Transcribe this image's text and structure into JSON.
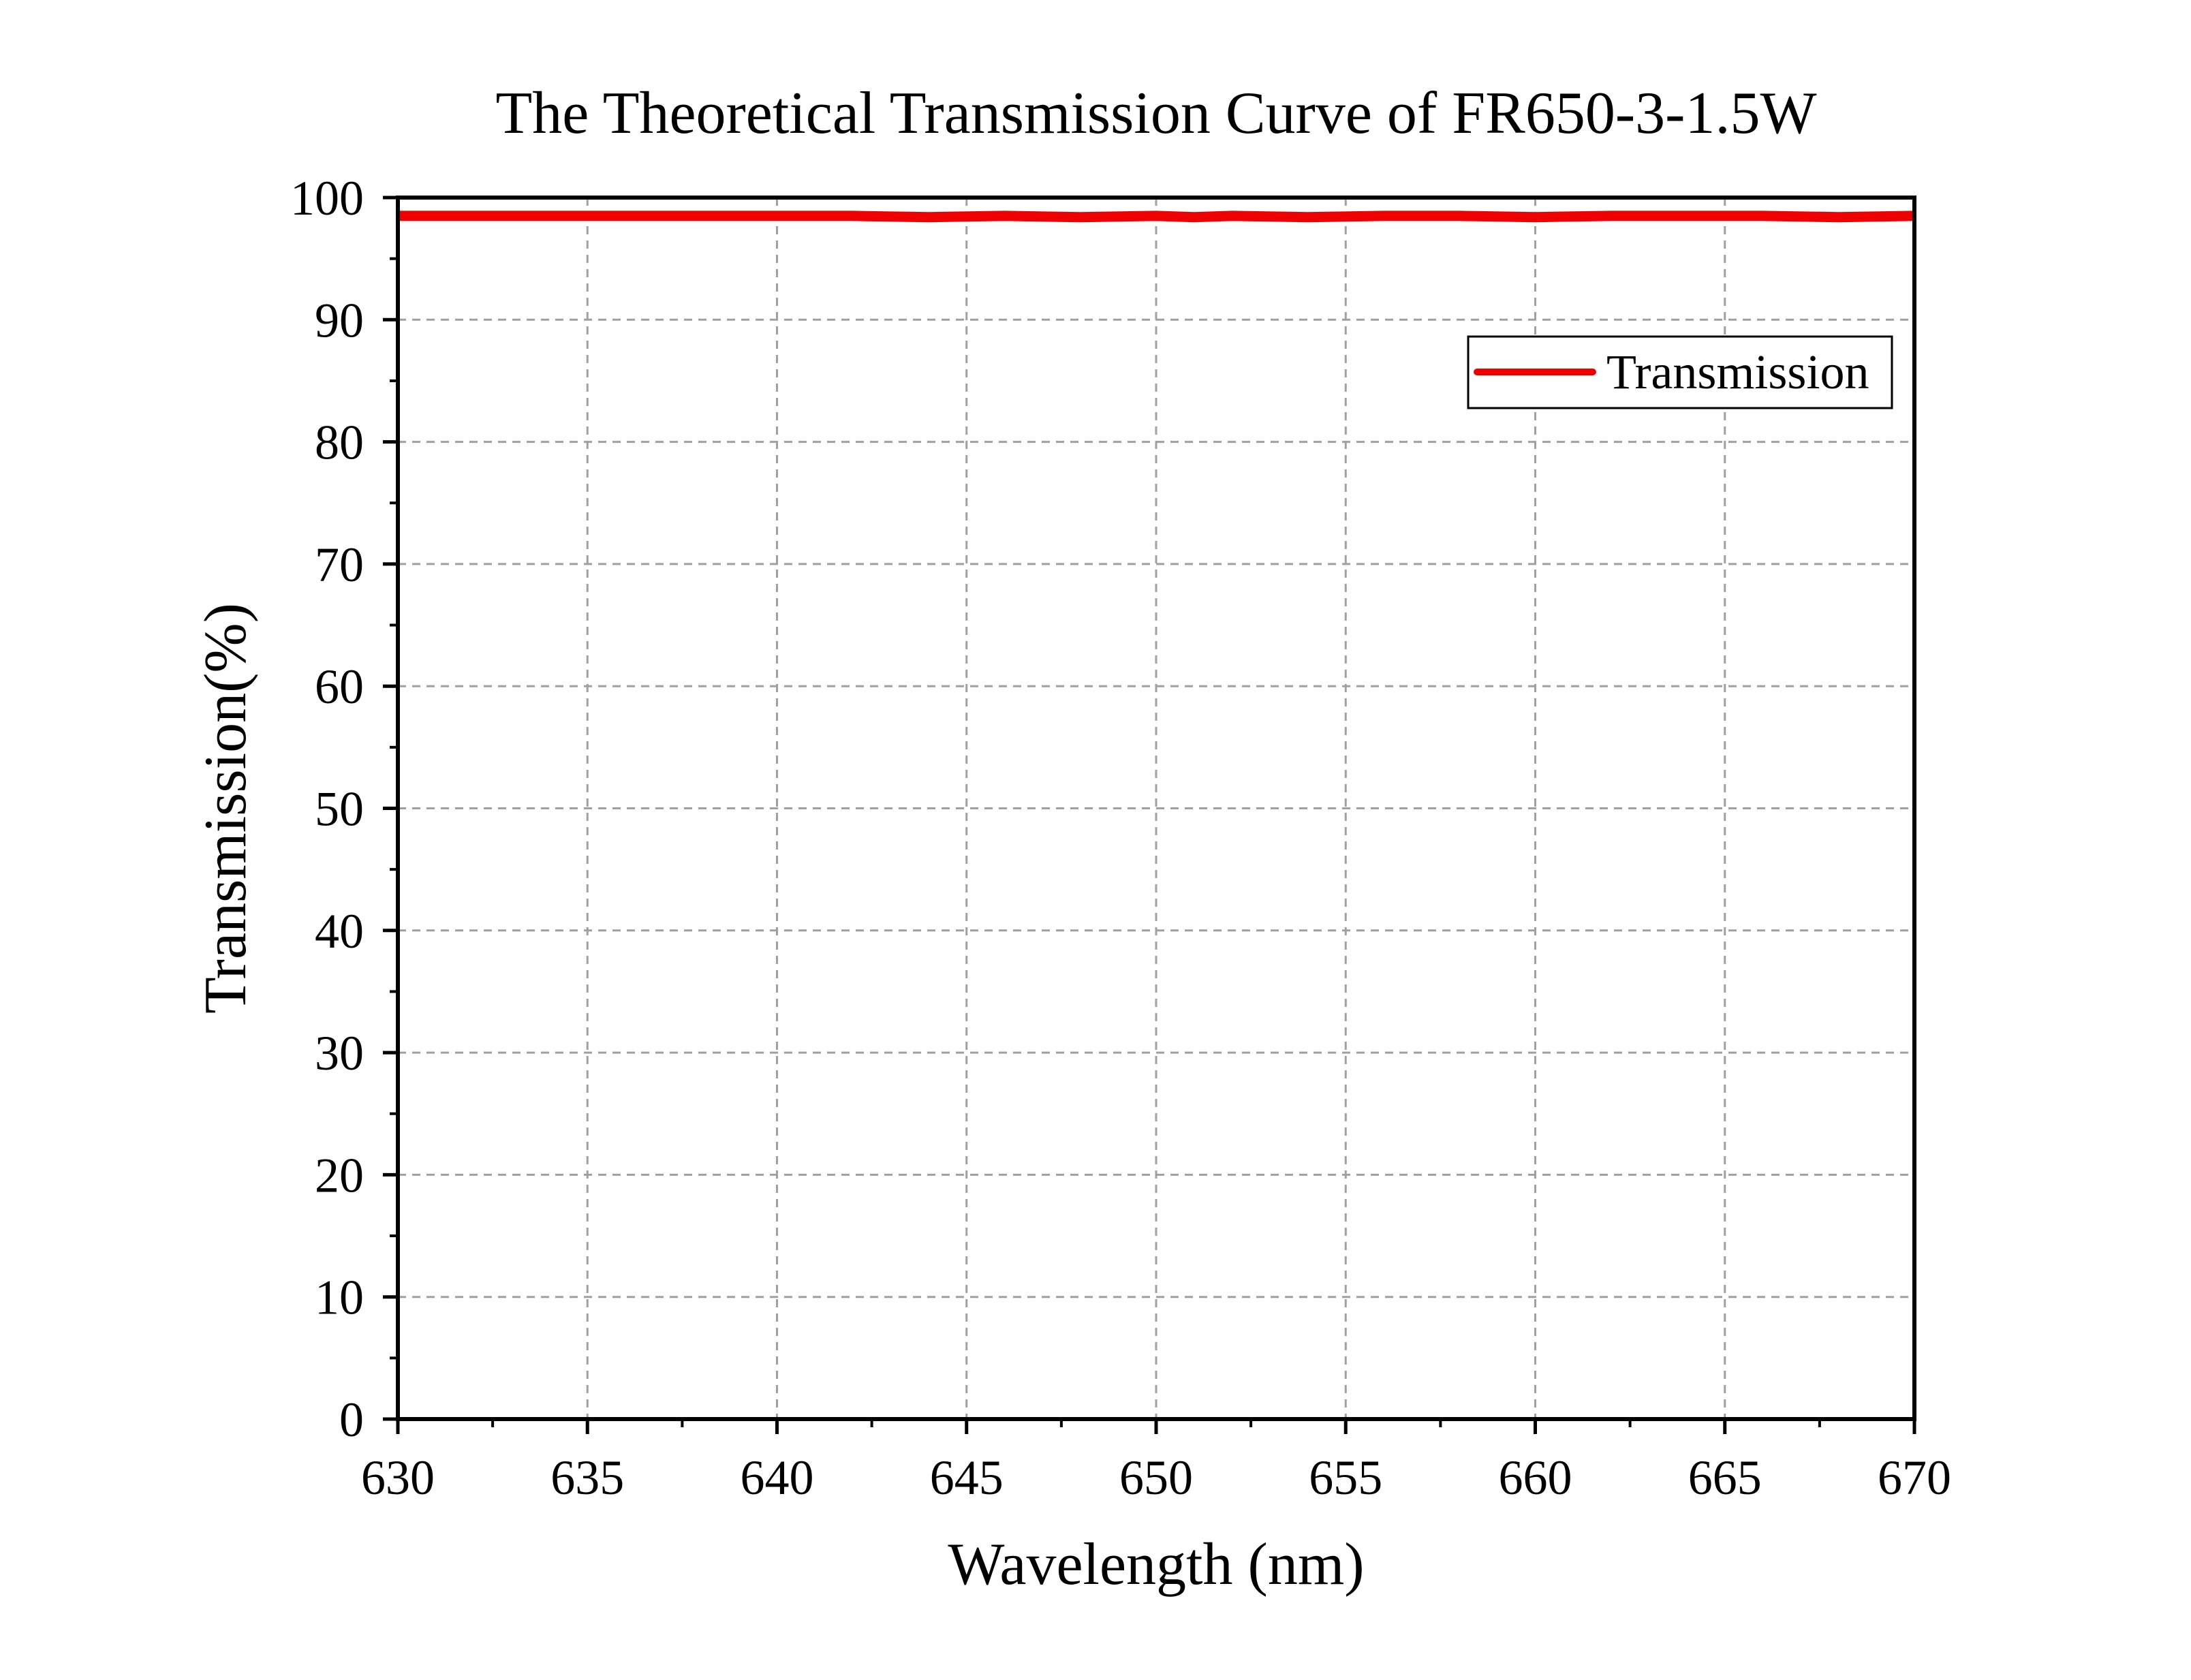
{
  "chart_data": {
    "type": "line",
    "title": "The Theoretical Transmission Curve of FR650-3-1.5W",
    "xlabel": "Wavelength (nm)",
    "ylabel": "Transmission(%)",
    "xlim": [
      630,
      670
    ],
    "ylim": [
      0,
      100
    ],
    "x_ticks": [
      "630",
      "635",
      "640",
      "645",
      "650",
      "655",
      "660",
      "665",
      "670"
    ],
    "y_ticks": [
      "0",
      "10",
      "20",
      "30",
      "40",
      "50",
      "60",
      "70",
      "80",
      "90",
      "100"
    ],
    "grid": true,
    "legend_position": "top-right",
    "series": [
      {
        "name": "Transmission",
        "color": "#ee0000",
        "x": [
          630,
          632,
          634,
          636,
          638,
          640,
          642,
          644,
          646,
          648,
          650,
          651,
          652,
          654,
          656,
          658,
          660,
          662,
          664,
          666,
          668,
          670
        ],
        "y": [
          98.5,
          98.5,
          98.5,
          98.5,
          98.5,
          98.5,
          98.5,
          98.4,
          98.5,
          98.4,
          98.5,
          98.4,
          98.5,
          98.4,
          98.5,
          98.5,
          98.4,
          98.5,
          98.5,
          98.5,
          98.4,
          98.5
        ]
      }
    ]
  }
}
